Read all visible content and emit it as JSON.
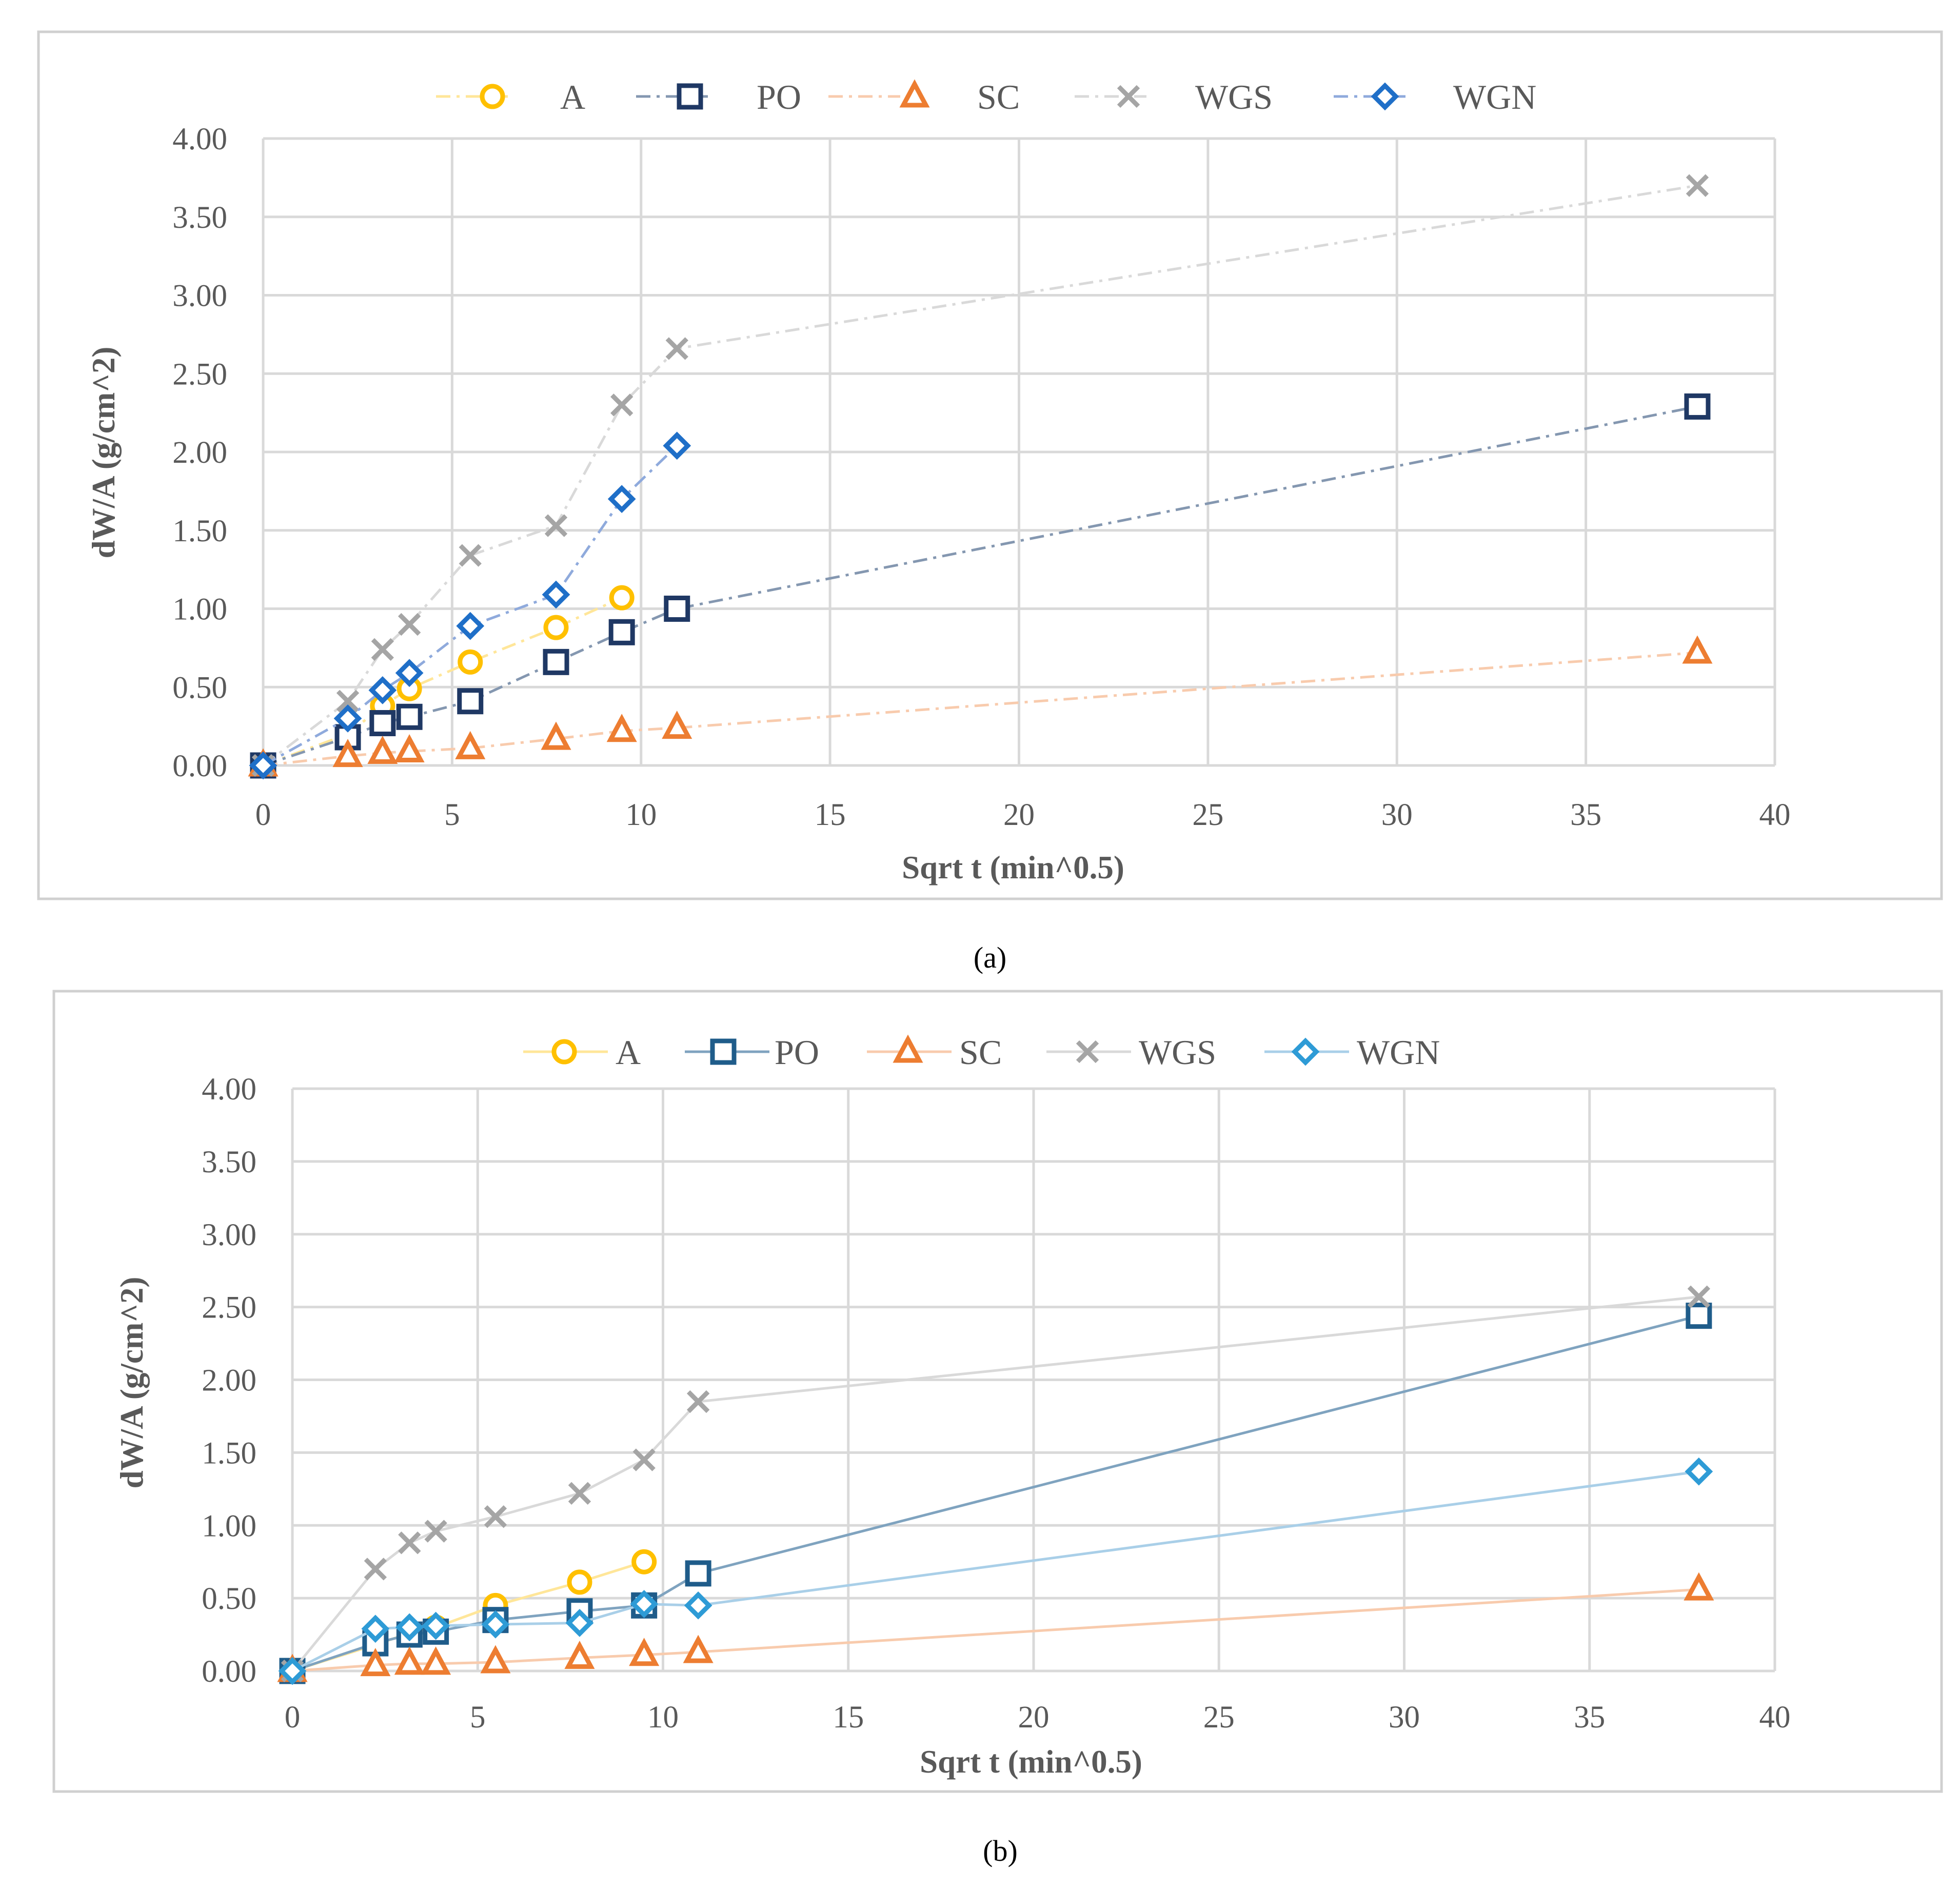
{
  "captions": [
    "(a)",
    "(b)"
  ],
  "chart_data": [
    {
      "type": "line",
      "title": "",
      "xlabel": "Sqrt t (min^0.5)",
      "ylabel": "dW/A (g/cm^2)",
      "xlim": [
        0,
        40
      ],
      "ylim": [
        0,
        4
      ],
      "xticks": [
        "0",
        "5",
        "10",
        "15",
        "20",
        "25",
        "30",
        "35",
        "40"
      ],
      "yticks": [
        "0.00",
        "0.50",
        "1.00",
        "1.50",
        "2.00",
        "2.50",
        "3.00",
        "3.50",
        "4.00"
      ],
      "grid": true,
      "legend_position": "top",
      "line_style": "dash-dot",
      "series": [
        {
          "name": "A",
          "marker": "circle",
          "color": "#FFC000",
          "line_color": "#FFE699",
          "x": [
            0,
            2.24,
            3.16,
            3.87,
            5.48,
            7.75,
            9.49
          ],
          "y": [
            0.0,
            0.2,
            0.38,
            0.49,
            0.66,
            0.88,
            1.07
          ]
        },
        {
          "name": "PO",
          "marker": "square",
          "color": "#1F3864",
          "line_color": "#8497B0",
          "x": [
            0,
            2.24,
            3.16,
            3.87,
            5.48,
            7.75,
            9.49,
            10.95,
            37.95
          ],
          "y": [
            0.0,
            0.18,
            0.27,
            0.31,
            0.41,
            0.66,
            0.85,
            1.0,
            2.29
          ]
        },
        {
          "name": "SC",
          "marker": "triangle",
          "color": "#ED7D31",
          "line_color": "#F8CBAD",
          "x": [
            0,
            2.24,
            3.16,
            3.87,
            5.48,
            7.75,
            9.49,
            10.95,
            37.95
          ],
          "y": [
            0.0,
            0.06,
            0.08,
            0.09,
            0.11,
            0.17,
            0.22,
            0.24,
            0.72
          ]
        },
        {
          "name": "WGS",
          "marker": "x",
          "color": "#A5A5A5",
          "line_color": "#D9D9D9",
          "x": [
            0,
            2.24,
            3.16,
            3.87,
            5.48,
            7.75,
            9.49,
            10.95,
            37.95
          ],
          "y": [
            0.0,
            0.41,
            0.74,
            0.9,
            1.34,
            1.53,
            2.3,
            2.66,
            3.7
          ]
        },
        {
          "name": "WGN",
          "marker": "diamond",
          "color": "#1F6FC8",
          "line_color": "#8FAADC",
          "x": [
            0,
            2.24,
            3.16,
            3.87,
            5.48,
            7.75,
            9.49,
            10.95
          ],
          "y": [
            0.0,
            0.3,
            0.48,
            0.59,
            0.89,
            1.09,
            1.7,
            2.04
          ]
        }
      ]
    },
    {
      "type": "line",
      "title": "",
      "xlabel": "Sqrt t (min^0.5)",
      "ylabel": "dW/A (g/cm^2)",
      "xlim": [
        0,
        40
      ],
      "ylim": [
        0,
        4
      ],
      "xticks": [
        "0",
        "5",
        "10",
        "15",
        "20",
        "25",
        "30",
        "35",
        "40"
      ],
      "yticks": [
        "0.00",
        "0.50",
        "1.00",
        "1.50",
        "2.00",
        "2.50",
        "3.00",
        "3.50",
        "4.00"
      ],
      "grid": true,
      "legend_position": "top",
      "line_style": "solid",
      "series": [
        {
          "name": "A",
          "marker": "circle",
          "color": "#FFC000",
          "line_color": "#FFE699",
          "x": [
            0,
            2.24,
            3.16,
            3.87,
            5.48,
            7.75,
            9.49
          ],
          "y": [
            0.0,
            0.18,
            0.26,
            0.3,
            0.45,
            0.61,
            0.75
          ]
        },
        {
          "name": "PO",
          "marker": "square",
          "color": "#1F5C8A",
          "line_color": "#7FA3BF",
          "x": [
            0,
            2.24,
            3.16,
            3.87,
            5.48,
            7.75,
            9.49,
            10.95,
            37.95
          ],
          "y": [
            0.0,
            0.19,
            0.25,
            0.27,
            0.35,
            0.41,
            0.45,
            0.67,
            2.44
          ]
        },
        {
          "name": "SC",
          "marker": "triangle",
          "color": "#ED7D31",
          "line_color": "#F8CBAD",
          "x": [
            0,
            2.24,
            3.16,
            3.87,
            5.48,
            7.75,
            9.49,
            10.95,
            37.95
          ],
          "y": [
            0.0,
            0.04,
            0.05,
            0.05,
            0.06,
            0.09,
            0.11,
            0.13,
            0.56
          ]
        },
        {
          "name": "WGS",
          "marker": "x",
          "color": "#A5A5A5",
          "line_color": "#D9D9D9",
          "x": [
            0,
            2.24,
            3.16,
            3.87,
            5.48,
            7.75,
            9.49,
            10.95,
            37.95
          ],
          "y": [
            0.0,
            0.7,
            0.88,
            0.96,
            1.06,
            1.22,
            1.45,
            1.85,
            2.57
          ]
        },
        {
          "name": "WGN",
          "marker": "diamond",
          "color": "#2E9BD6",
          "line_color": "#A9CFE8",
          "x": [
            0,
            2.24,
            3.16,
            3.87,
            5.48,
            7.75,
            9.49,
            10.95,
            37.95
          ],
          "y": [
            0.0,
            0.29,
            0.3,
            0.31,
            0.32,
            0.33,
            0.46,
            0.45,
            1.37
          ]
        }
      ]
    }
  ]
}
